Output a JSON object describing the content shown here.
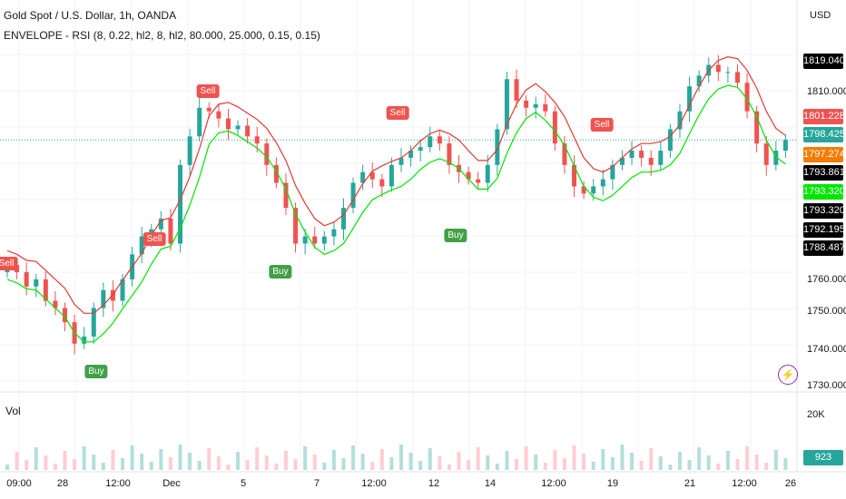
{
  "header": {
    "title": "Gold Spot / U.S. Dollar, 1h, OANDA",
    "indicator": "ENVELOPE - RSI (8, 0.22, hl2, 8, hl2, 80.000, 25.000, 0.15, 0.15)",
    "currency": "USD"
  },
  "volume_pane": {
    "label": "Vol",
    "ticks": [
      "20K"
    ],
    "last_volume": "923"
  },
  "price_axis": {
    "ticks": [
      "1810.000",
      "1760.000",
      "1750.000",
      "1740.000",
      "1730.000"
    ]
  },
  "time_axis": {
    "ticks": [
      "09:00",
      "28",
      "12:00",
      "Dec",
      "5",
      "7",
      "12:00",
      "12",
      "14",
      "12:00",
      "19",
      "21",
      "12:00",
      "26"
    ]
  },
  "price_tags": [
    {
      "value": "1819.040",
      "color": "#000000"
    },
    {
      "value": "1801.228",
      "color": "#ef5350"
    },
    {
      "value": "1798.425",
      "color": "#26a69a"
    },
    {
      "value": "1797.274",
      "color": "#f57c00"
    },
    {
      "value": "1793.861",
      "color": "#000000"
    },
    {
      "value": "1793.320",
      "color": "#00e600"
    },
    {
      "value": "1793.320",
      "color": "#000000"
    },
    {
      "value": "1792.195",
      "color": "#000000"
    },
    {
      "value": "1788.487",
      "color": "#000000"
    }
  ],
  "signals": [
    {
      "type": "sell",
      "label": "Sell"
    },
    {
      "type": "sell",
      "label": "Sell"
    },
    {
      "type": "sell",
      "label": "Sell"
    },
    {
      "type": "sell",
      "label": "Sell"
    },
    {
      "type": "sell",
      "label": "Sell"
    },
    {
      "type": "buy",
      "label": "Buy"
    },
    {
      "type": "buy",
      "label": "Buy"
    },
    {
      "type": "buy",
      "label": "Buy"
    }
  ],
  "colors": {
    "up": "#26a69a",
    "down": "#ef5350",
    "upper_band": "#e53935",
    "lower_band": "#00e600"
  },
  "chart_data": {
    "type": "candlestick",
    "symbol": "XAUUSD",
    "interval": "1h",
    "y_range": [
      1727,
      1826
    ],
    "series": [
      {
        "name": "close",
        "values": [
          1762,
          1760,
          1756,
          1758,
          1752,
          1750,
          1746,
          1740,
          1742,
          1750,
          1755,
          1752,
          1758,
          1765,
          1770,
          1772,
          1775,
          1768,
          1790,
          1798,
          1806,
          1805,
          1803,
          1800,
          1801,
          1798,
          1796,
          1790,
          1785,
          1778,
          1768,
          1770,
          1768,
          1770,
          1772,
          1778,
          1785,
          1788,
          1786,
          1784,
          1790,
          1792,
          1794,
          1795,
          1798,
          1796,
          1790,
          1788,
          1786,
          1785,
          1790,
          1800,
          1814,
          1808,
          1806,
          1807,
          1805,
          1796,
          1790,
          1784,
          1782,
          1784,
          1786,
          1790,
          1792,
          1794,
          1792,
          1790,
          1794,
          1800,
          1805,
          1812,
          1815,
          1818,
          1816,
          1816,
          1813,
          1805,
          1796,
          1790,
          1794,
          1797
        ]
      }
    ]
  }
}
